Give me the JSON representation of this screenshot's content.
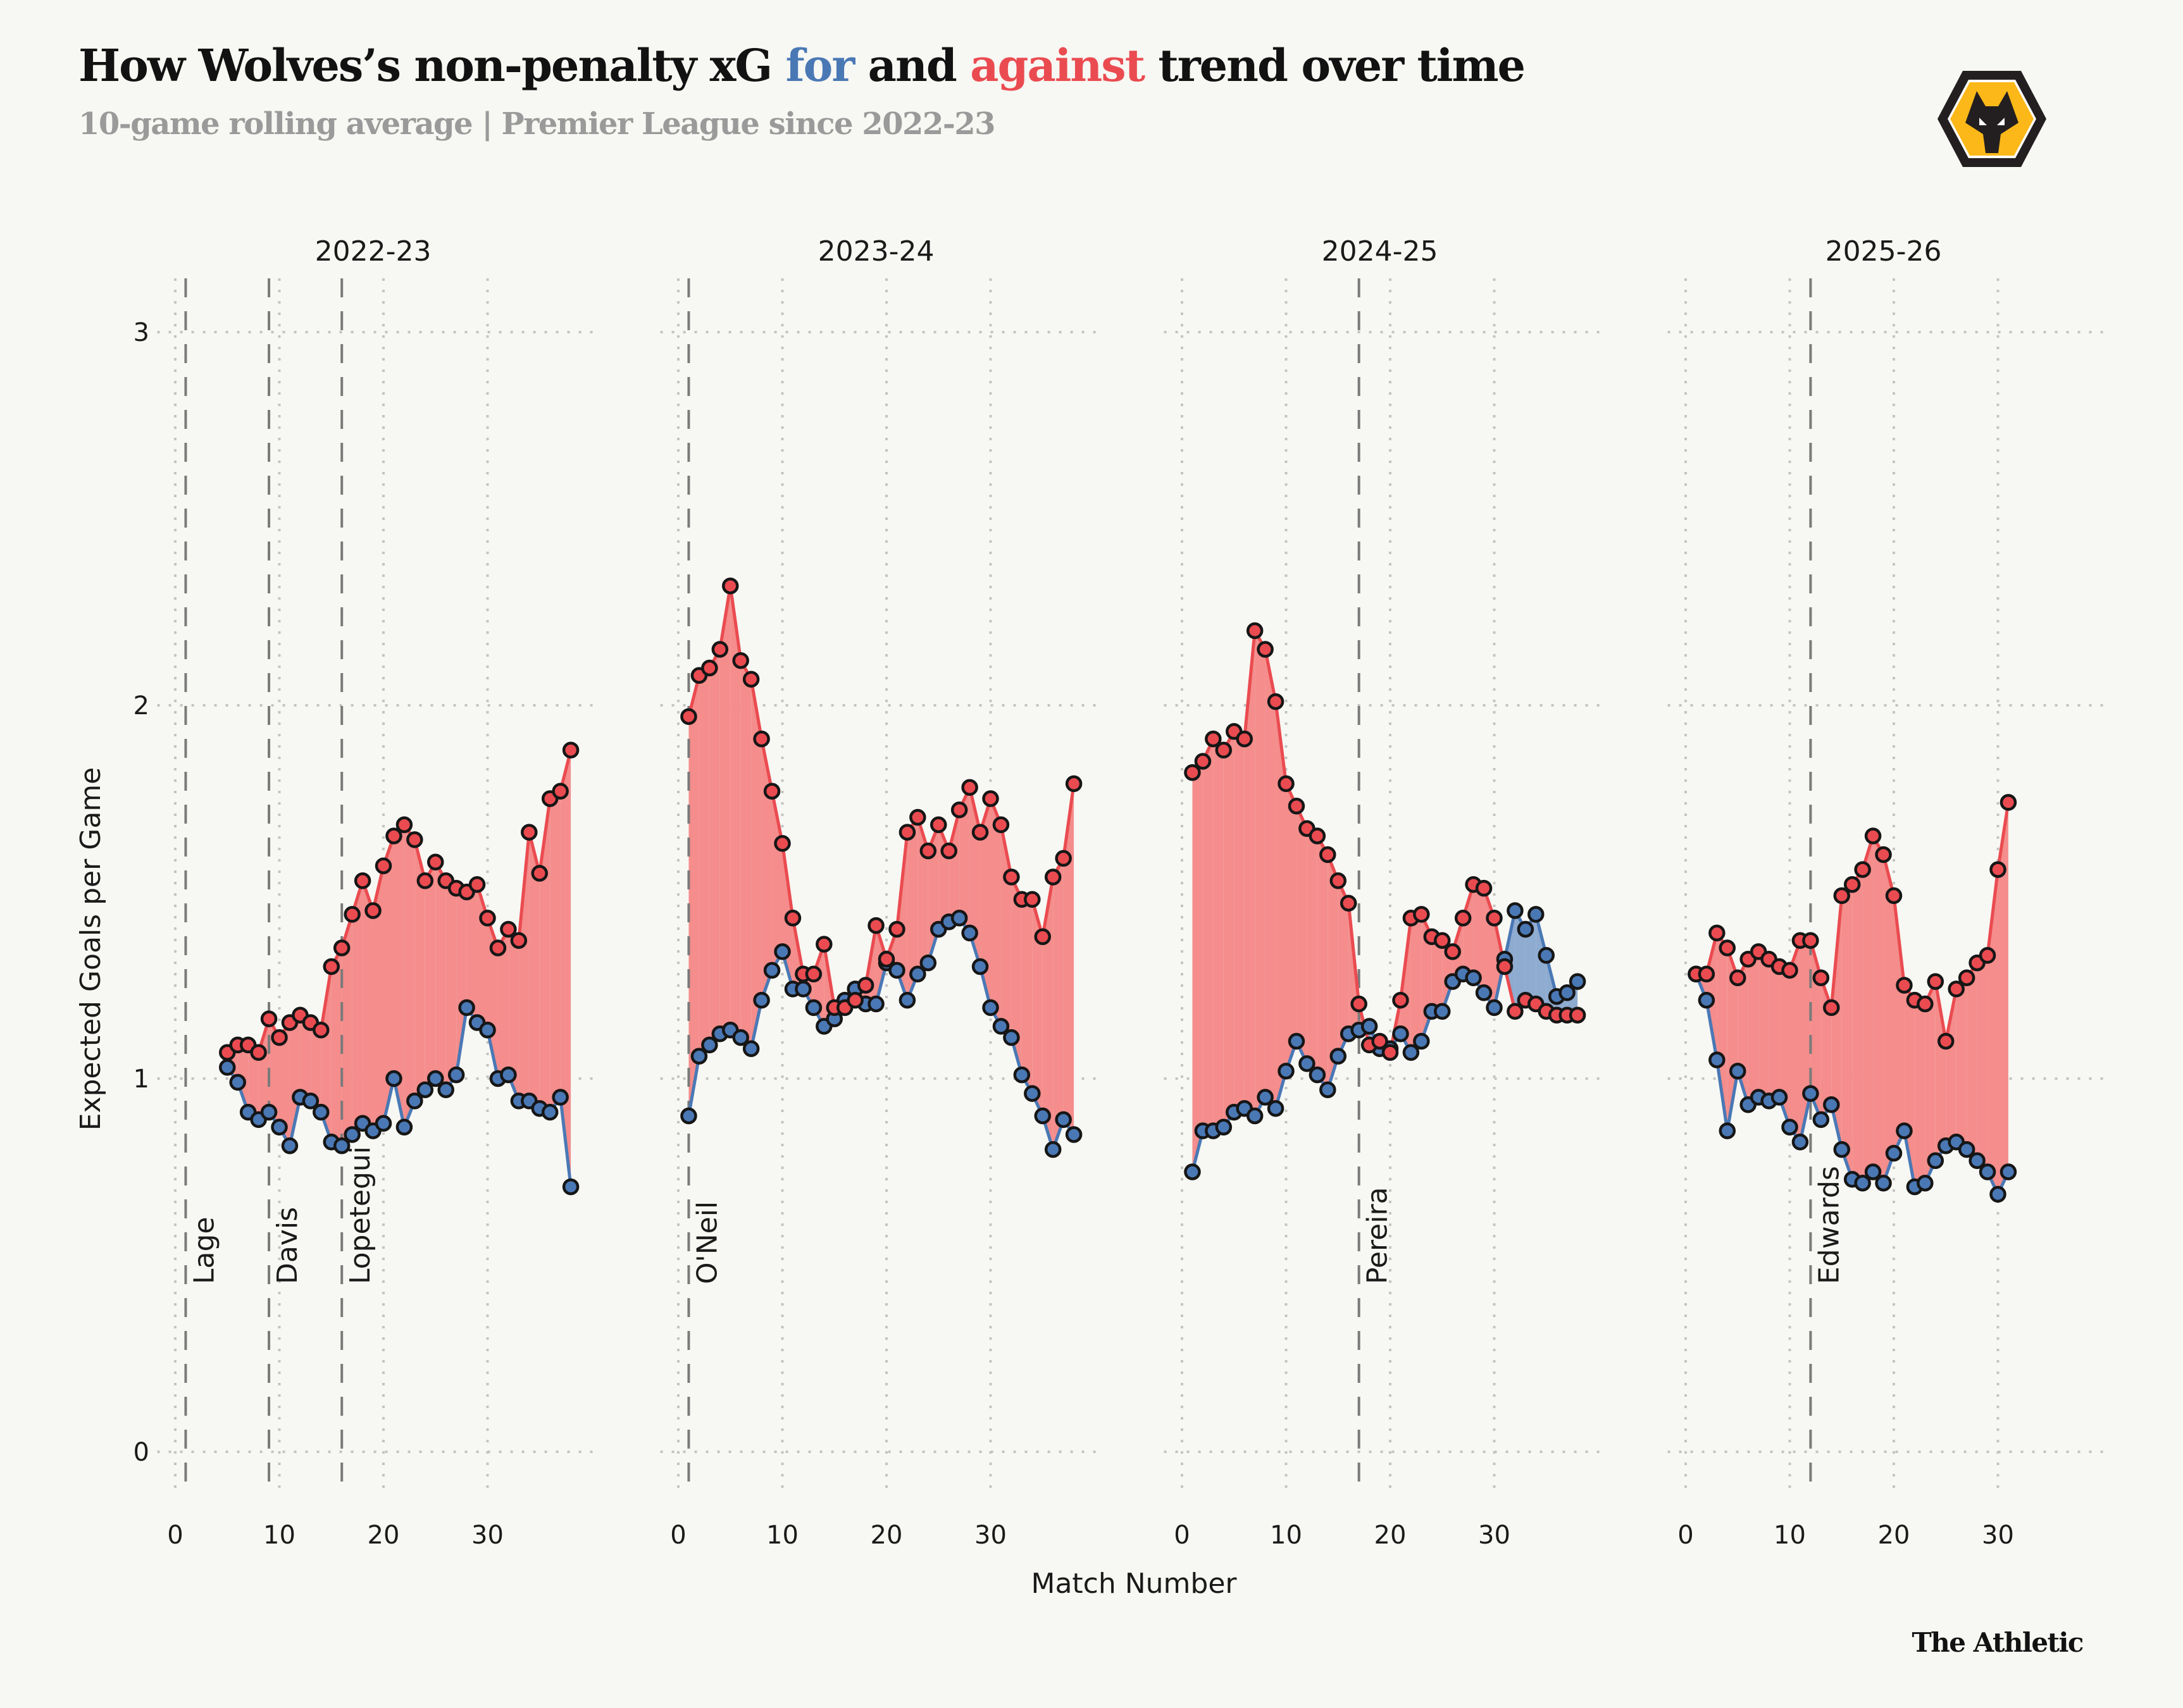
{
  "header": {
    "title_parts": [
      "How Wolves’s non-penalty xG ",
      "for",
      " and ",
      "against",
      " trend over time"
    ],
    "subtitle": "10-game rolling average | Premier League since 2022-23",
    "logo": "wolves-crest-icon"
  },
  "footer": {
    "credit": "The Athletic"
  },
  "colors": {
    "for": "#4a78b5",
    "against": "#ea4b50",
    "fill_against": "#f48d8c",
    "fill_for": "#8eabd0",
    "background": "#f7f7f3"
  },
  "chart_data": {
    "type": "line",
    "title": "How Wolves’s non-penalty xG for and against trend over time",
    "subtitle": "10-game rolling average | Premier League since 2022-23",
    "xlabel": "Match Number",
    "ylabel": "Expected Goals per Game",
    "ylim": [
      -0.1,
      3.1
    ],
    "yticks": [
      0,
      1,
      2,
      3
    ],
    "xlim": [
      -1,
      39
    ],
    "xticks": [
      0,
      10,
      20,
      30
    ],
    "grid": true,
    "legend": "title-colored",
    "facets": [
      {
        "season": "2022-23",
        "managers": [
          {
            "name": "Lage",
            "match": 1
          },
          {
            "name": "Davis",
            "match": 9
          },
          {
            "name": "Lopetegui",
            "match": 16
          }
        ],
        "x_start": 5,
        "series": [
          {
            "name": "against",
            "values": [
              1.07,
              1.09,
              1.09,
              1.07,
              1.16,
              1.11,
              1.15,
              1.17,
              1.15,
              1.13,
              1.3,
              1.35,
              1.44,
              1.53,
              1.45,
              1.57,
              1.65,
              1.68,
              1.64,
              1.53,
              1.58,
              1.53,
              1.51,
              1.5,
              1.52,
              1.43,
              1.35,
              1.4,
              1.37,
              1.66,
              1.55,
              1.75,
              1.77,
              1.88
            ]
          },
          {
            "name": "for",
            "values": [
              1.03,
              0.99,
              0.91,
              0.89,
              0.91,
              0.87,
              0.82,
              0.95,
              0.94,
              0.91,
              0.83,
              0.82,
              0.85,
              0.88,
              0.86,
              0.88,
              1.0,
              0.87,
              0.94,
              0.97,
              1.0,
              0.97,
              1.01,
              1.19,
              1.15,
              1.13,
              1.0,
              1.01,
              0.94,
              0.94,
              0.92,
              0.91,
              0.95,
              0.71
            ]
          }
        ]
      },
      {
        "season": "2023-24",
        "managers": [
          {
            "name": "O'Neil",
            "match": 1
          }
        ],
        "x_start": 1,
        "series": [
          {
            "name": "against",
            "values": [
              1.97,
              2.08,
              2.1,
              2.15,
              2.32,
              2.12,
              2.07,
              1.91,
              1.77,
              1.63,
              1.43,
              1.28,
              1.28,
              1.36,
              1.19,
              1.19,
              1.21,
              1.25,
              1.41,
              1.32,
              1.4,
              1.66,
              1.7,
              1.61,
              1.68,
              1.61,
              1.72,
              1.78,
              1.66,
              1.75,
              1.68,
              1.54,
              1.48,
              1.48,
              1.38,
              1.54,
              1.59,
              1.79
            ]
          },
          {
            "name": "for",
            "values": [
              0.9,
              1.06,
              1.09,
              1.12,
              1.13,
              1.11,
              1.08,
              1.21,
              1.29,
              1.34,
              1.24,
              1.24,
              1.19,
              1.14,
              1.16,
              1.21,
              1.24,
              1.2,
              1.2,
              1.31,
              1.29,
              1.21,
              1.28,
              1.31,
              1.4,
              1.42,
              1.43,
              1.39,
              1.3,
              1.19,
              1.14,
              1.11,
              1.01,
              0.96,
              0.9,
              0.81,
              0.89,
              0.85
            ]
          }
        ]
      },
      {
        "season": "2024-25",
        "managers": [
          {
            "name": "Pereira",
            "match": 17
          }
        ],
        "x_start": 1,
        "series": [
          {
            "name": "against",
            "values": [
              1.82,
              1.85,
              1.91,
              1.88,
              1.93,
              1.91,
              2.2,
              2.15,
              2.01,
              1.79,
              1.73,
              1.67,
              1.65,
              1.6,
              1.53,
              1.47,
              1.2,
              1.09,
              1.1,
              1.07,
              1.21,
              1.43,
              1.44,
              1.38,
              1.37,
              1.34,
              1.43,
              1.52,
              1.51,
              1.43,
              1.3,
              1.18,
              1.21,
              1.2,
              1.18,
              1.17,
              1.17,
              1.17
            ]
          },
          {
            "name": "for",
            "values": [
              0.75,
              0.86,
              0.86,
              0.87,
              0.91,
              0.92,
              0.9,
              0.95,
              0.92,
              1.02,
              1.1,
              1.04,
              1.01,
              0.97,
              1.06,
              1.12,
              1.13,
              1.14,
              1.08,
              1.08,
              1.12,
              1.07,
              1.1,
              1.18,
              1.18,
              1.26,
              1.28,
              1.27,
              1.23,
              1.19,
              1.32,
              1.45,
              1.4,
              1.44,
              1.33,
              1.22,
              1.23,
              1.26
            ]
          }
        ]
      },
      {
        "season": "2025-26",
        "managers": [
          {
            "name": "Edwards",
            "match": 12
          }
        ],
        "x_start": 1,
        "series": [
          {
            "name": "against",
            "values": [
              1.28,
              1.28,
              1.39,
              1.35,
              1.27,
              1.32,
              1.34,
              1.32,
              1.3,
              1.29,
              1.37,
              1.37,
              1.27,
              1.19,
              1.49,
              1.52,
              1.56,
              1.65,
              1.6,
              1.49,
              1.25,
              1.21,
              1.2,
              1.26,
              1.1,
              1.24,
              1.27,
              1.31,
              1.33,
              1.56,
              1.74
            ]
          },
          {
            "name": "for",
            "values": [
              1.28,
              1.21,
              1.05,
              0.86,
              1.02,
              0.93,
              0.95,
              0.94,
              0.95,
              0.87,
              0.83,
              0.96,
              0.89,
              0.93,
              0.81,
              0.73,
              0.72,
              0.75,
              0.72,
              0.8,
              0.86,
              0.71,
              0.72,
              0.78,
              0.82,
              0.83,
              0.81,
              0.78,
              0.75,
              0.69,
              0.75
            ]
          }
        ]
      }
    ]
  }
}
